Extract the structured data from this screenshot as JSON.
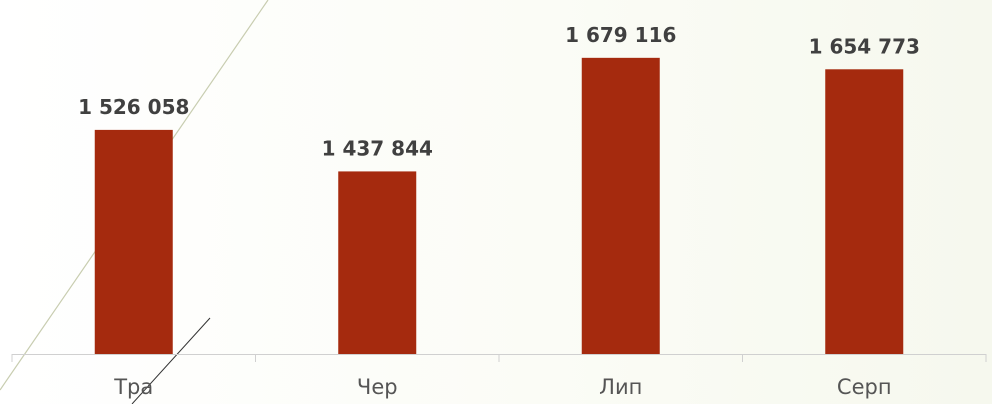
{
  "chart_data": {
    "type": "bar",
    "categories": [
      "Тра",
      "Чер",
      "Лип",
      "Серп"
    ],
    "values": [
      1526058,
      1437844,
      1679116,
      1654773
    ],
    "value_labels": [
      "1 526 058",
      "1 437 844",
      "1 679 116",
      "1 654 773"
    ],
    "title": "",
    "xlabel": "",
    "ylabel": "",
    "ylim": [
      1050000,
      1700000
    ],
    "grid": false,
    "legend": "none",
    "bar_color": "#a52a0e",
    "axis_color": "#d0d0d0"
  }
}
